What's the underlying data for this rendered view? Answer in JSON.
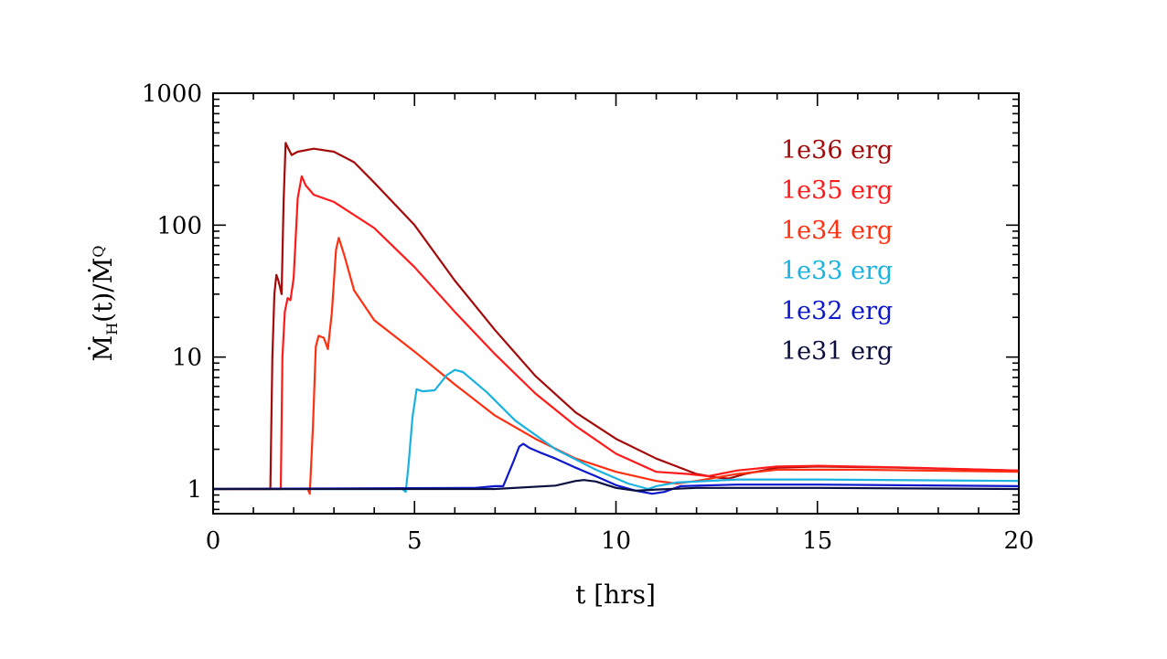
{
  "chart_data": {
    "type": "line",
    "xlabel": "t  [hrs]",
    "ylabel": {
      "main": "Ṁ",
      "sub": "H",
      "tail": "(t)/Ṁ",
      "sup": "Q"
    },
    "xlim": [
      0,
      20
    ],
    "ylim": [
      0.65,
      1000
    ],
    "yscale": "log",
    "xticks": [
      0,
      5,
      10,
      15,
      20
    ],
    "xtick_labels": [
      "0",
      "5",
      "10",
      "15",
      "20"
    ],
    "yticks": [
      1,
      10,
      100,
      1000
    ],
    "ytick_labels": [
      "1",
      "10",
      "100",
      "1000"
    ],
    "grid": false,
    "legend_position": "top-right",
    "series": [
      {
        "name": "1e36 erg",
        "color": "#a50a0a",
        "points": [
          [
            0,
            1
          ],
          [
            1.42,
            1
          ],
          [
            1.47,
            10
          ],
          [
            1.52,
            30
          ],
          [
            1.57,
            42
          ],
          [
            1.62,
            38
          ],
          [
            1.7,
            30
          ],
          [
            1.75,
            150
          ],
          [
            1.8,
            420
          ],
          [
            1.85,
            390
          ],
          [
            1.95,
            340
          ],
          [
            2.1,
            360
          ],
          [
            2.5,
            380
          ],
          [
            3.0,
            360
          ],
          [
            3.5,
            300
          ],
          [
            4.0,
            210
          ],
          [
            5.0,
            100
          ],
          [
            6.0,
            38
          ],
          [
            7.0,
            16
          ],
          [
            8.0,
            7.2
          ],
          [
            9.0,
            3.8
          ],
          [
            10.0,
            2.4
          ],
          [
            11.0,
            1.7
          ],
          [
            12.0,
            1.3
          ],
          [
            12.5,
            1.22
          ],
          [
            12.8,
            1.2
          ],
          [
            13.2,
            1.3
          ],
          [
            14.0,
            1.45
          ],
          [
            15.0,
            1.48
          ],
          [
            17.0,
            1.45
          ],
          [
            20.0,
            1.38
          ]
        ]
      },
      {
        "name": "1e35 erg",
        "color": "#ff1a1a",
        "points": [
          [
            0,
            1
          ],
          [
            1.68,
            1
          ],
          [
            1.72,
            10
          ],
          [
            1.78,
            22
          ],
          [
            1.85,
            28
          ],
          [
            1.92,
            27
          ],
          [
            2.0,
            40
          ],
          [
            2.1,
            160
          ],
          [
            2.2,
            235
          ],
          [
            2.3,
            200
          ],
          [
            2.5,
            170
          ],
          [
            3.0,
            150
          ],
          [
            4.0,
            95
          ],
          [
            5.0,
            48
          ],
          [
            6.0,
            22
          ],
          [
            7.0,
            10.5
          ],
          [
            8.0,
            5.3
          ],
          [
            9.0,
            3.0
          ],
          [
            10.0,
            1.85
          ],
          [
            11.0,
            1.35
          ],
          [
            11.8,
            1.3
          ],
          [
            12.3,
            1.25
          ],
          [
            13.0,
            1.38
          ],
          [
            14.0,
            1.48
          ],
          [
            15.0,
            1.5
          ],
          [
            17.0,
            1.46
          ],
          [
            20.0,
            1.38
          ]
        ]
      },
      {
        "name": "1e34 erg",
        "color": "#ff3010",
        "points": [
          [
            0,
            1
          ],
          [
            2.35,
            1
          ],
          [
            2.4,
            0.92
          ],
          [
            2.48,
            3
          ],
          [
            2.55,
            12
          ],
          [
            2.62,
            14.5
          ],
          [
            2.75,
            14
          ],
          [
            2.85,
            11.5
          ],
          [
            2.95,
            22
          ],
          [
            3.05,
            65
          ],
          [
            3.12,
            80
          ],
          [
            3.25,
            60
          ],
          [
            3.5,
            32
          ],
          [
            4.0,
            19
          ],
          [
            5.0,
            11
          ],
          [
            6.0,
            6.2
          ],
          [
            7.0,
            3.6
          ],
          [
            8.0,
            2.4
          ],
          [
            9.0,
            1.7
          ],
          [
            10.0,
            1.35
          ],
          [
            11.0,
            1.15
          ],
          [
            11.5,
            1.1
          ],
          [
            12.0,
            1.15
          ],
          [
            13.0,
            1.3
          ],
          [
            14.0,
            1.4
          ],
          [
            16.0,
            1.4
          ],
          [
            20.0,
            1.35
          ]
        ]
      },
      {
        "name": "1e33 erg",
        "color": "#1ab2e0",
        "points": [
          [
            0,
            1
          ],
          [
            4.7,
            1
          ],
          [
            4.78,
            0.95
          ],
          [
            4.85,
            1.5
          ],
          [
            4.95,
            3.5
          ],
          [
            5.05,
            5.7
          ],
          [
            5.2,
            5.5
          ],
          [
            5.5,
            5.6
          ],
          [
            5.8,
            7.3
          ],
          [
            6.0,
            8.0
          ],
          [
            6.2,
            7.7
          ],
          [
            6.8,
            5.4
          ],
          [
            7.5,
            3.3
          ],
          [
            8.5,
            2.0
          ],
          [
            9.5,
            1.4
          ],
          [
            10.3,
            1.1
          ],
          [
            10.8,
            1.0
          ],
          [
            11.0,
            1.05
          ],
          [
            11.5,
            1.12
          ],
          [
            13.0,
            1.18
          ],
          [
            15.0,
            1.18
          ],
          [
            20.0,
            1.15
          ]
        ]
      },
      {
        "name": "1e32 erg",
        "color": "#0d18cc",
        "points": [
          [
            0,
            1
          ],
          [
            6.5,
            1.02
          ],
          [
            7.0,
            1.05
          ],
          [
            7.2,
            1.05
          ],
          [
            7.45,
            1.6
          ],
          [
            7.6,
            2.1
          ],
          [
            7.7,
            2.2
          ],
          [
            7.85,
            2.05
          ],
          [
            8.1,
            1.9
          ],
          [
            8.5,
            1.7
          ],
          [
            9.0,
            1.45
          ],
          [
            9.5,
            1.25
          ],
          [
            10.0,
            1.07
          ],
          [
            10.5,
            0.97
          ],
          [
            10.9,
            0.92
          ],
          [
            11.2,
            0.95
          ],
          [
            11.6,
            1.05
          ],
          [
            13.0,
            1.08
          ],
          [
            15.0,
            1.08
          ],
          [
            20.0,
            1.05
          ]
        ]
      },
      {
        "name": "1e31 erg",
        "color": "#0a0f40",
        "points": [
          [
            0,
            1
          ],
          [
            7.0,
            1.0
          ],
          [
            8.5,
            1.06
          ],
          [
            9.0,
            1.15
          ],
          [
            9.2,
            1.17
          ],
          [
            9.5,
            1.14
          ],
          [
            10.0,
            1.02
          ],
          [
            10.5,
            0.97
          ],
          [
            11.0,
            0.99
          ],
          [
            12.0,
            1.02
          ],
          [
            15.0,
            1.02
          ],
          [
            20.0,
            1.0
          ]
        ]
      }
    ]
  }
}
